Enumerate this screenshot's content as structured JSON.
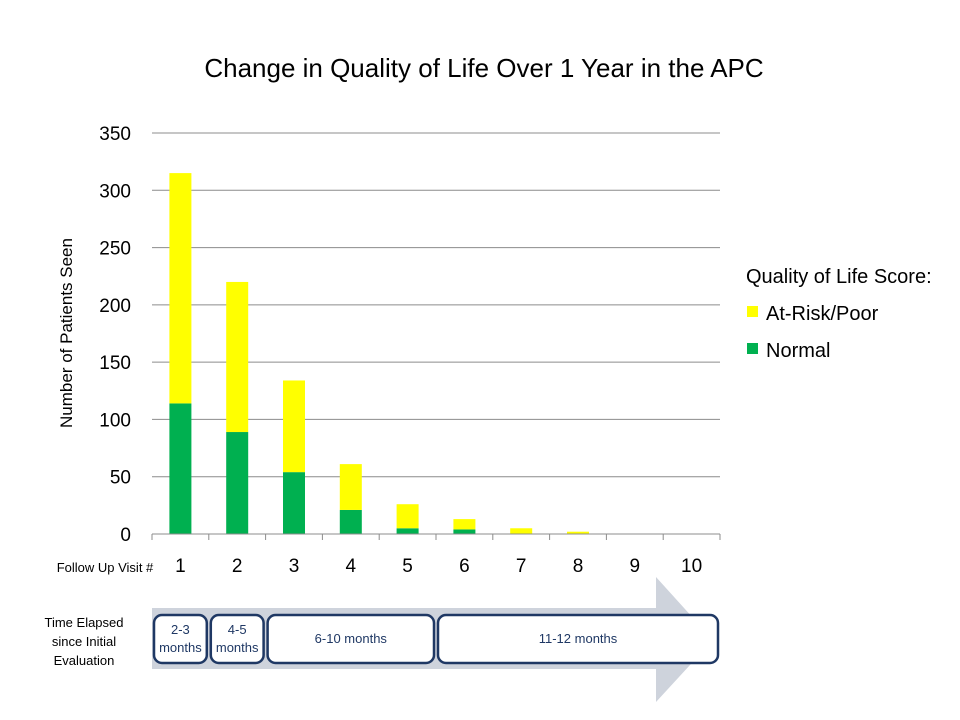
{
  "chart_data": {
    "type": "bar",
    "stacked": true,
    "title": "Change in Quality of Life Over 1 Year in the APC",
    "xlabel": "Follow Up Visit #",
    "ylabel": "Number of Patients Seen",
    "ylim": [
      0,
      350
    ],
    "yticks": [
      0,
      50,
      100,
      150,
      200,
      250,
      300,
      350
    ],
    "grid": true,
    "categories": [
      "1",
      "2",
      "3",
      "4",
      "5",
      "6",
      "7",
      "8",
      "9",
      "10"
    ],
    "series": [
      {
        "name": "Normal",
        "color": "#00b050",
        "values": [
          114,
          89,
          54,
          21,
          5,
          4,
          0,
          0,
          0,
          0
        ]
      },
      {
        "name": "At-Risk/Poor",
        "color": "#ffff00",
        "values": [
          201,
          131,
          80,
          40,
          21,
          9,
          5,
          2,
          0,
          0
        ]
      }
    ],
    "legend": {
      "title": "Quality of Life Score:",
      "placement": "right",
      "items": [
        "At-Risk/Poor",
        "Normal"
      ]
    }
  },
  "timeline": {
    "label_lines": [
      "Time  Elapsed",
      "since Initial",
      "Evaluation"
    ],
    "periods": [
      {
        "lines": [
          "2-3",
          "months"
        ],
        "from": 1,
        "to": 1
      },
      {
        "lines": [
          "4-5",
          "months"
        ],
        "from": 2,
        "to": 2
      },
      {
        "lines": [
          "6-10 months"
        ],
        "from": 3,
        "to": 5
      },
      {
        "lines": [
          "11-12 months"
        ],
        "from": 6,
        "to": 10
      }
    ],
    "arrow_color": "#ced3dc",
    "box_border_color": "#1f3864"
  }
}
